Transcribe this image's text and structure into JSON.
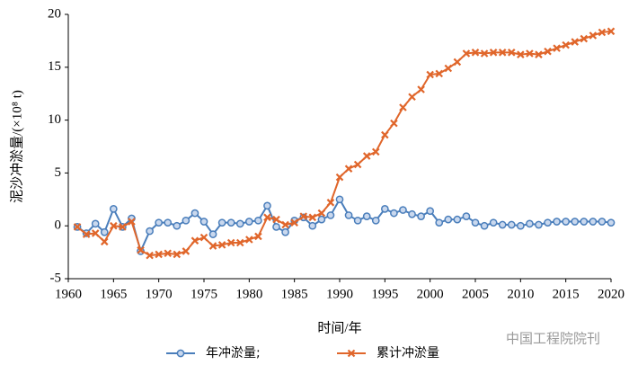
{
  "chart_data": {
    "type": "line",
    "x_label": "时间/年",
    "y_label": "泥沙冲淤量/(×10⁸ t)",
    "annotation": "中国工程院院刊",
    "x": [
      1961,
      1962,
      1963,
      1964,
      1965,
      1966,
      1967,
      1968,
      1969,
      1970,
      1971,
      1972,
      1973,
      1974,
      1975,
      1976,
      1977,
      1978,
      1979,
      1980,
      1981,
      1982,
      1983,
      1984,
      1985,
      1986,
      1987,
      1988,
      1989,
      1990,
      1991,
      1992,
      1993,
      1994,
      1995,
      1996,
      1997,
      1998,
      1999,
      2000,
      2001,
      2002,
      2003,
      2004,
      2005,
      2006,
      2007,
      2008,
      2009,
      2010,
      2011,
      2012,
      2013,
      2014,
      2015,
      2016,
      2017,
      2018,
      2019,
      2020
    ],
    "series": [
      {
        "name": "年冲淤量;",
        "color": "#4a7ebb",
        "marker": "circle",
        "values": [
          -0.1,
          -0.7,
          0.2,
          -0.6,
          1.6,
          -0.1,
          0.7,
          -2.4,
          -0.5,
          0.3,
          0.3,
          0.0,
          0.5,
          1.2,
          0.4,
          -0.8,
          0.3,
          0.3,
          0.2,
          0.4,
          0.5,
          1.9,
          -0.1,
          -0.6,
          0.5,
          0.8,
          0.0,
          0.6,
          1.0,
          2.5,
          1.0,
          0.5,
          0.9,
          0.5,
          1.6,
          1.2,
          1.5,
          1.1,
          0.9,
          1.4,
          0.3,
          0.6,
          0.6,
          0.9,
          0.3,
          0.0,
          0.3,
          0.1,
          0.1,
          0.0,
          0.2,
          0.1,
          0.3,
          0.4,
          0.4,
          0.4,
          0.4,
          0.4,
          0.4,
          0.3
        ]
      },
      {
        "name": "累计冲淤量",
        "color": "#e0662b",
        "marker": "x",
        "values": [
          -0.1,
          -0.8,
          -0.7,
          -1.5,
          0.0,
          -0.1,
          0.4,
          -2.3,
          -2.8,
          -2.7,
          -2.6,
          -2.7,
          -2.4,
          -1.4,
          -1.1,
          -1.9,
          -1.8,
          -1.6,
          -1.6,
          -1.3,
          -1.0,
          0.8,
          0.6,
          0.1,
          0.3,
          0.9,
          0.8,
          1.2,
          2.2,
          4.6,
          5.4,
          5.8,
          6.6,
          7.0,
          8.6,
          9.7,
          11.2,
          12.2,
          12.9,
          14.3,
          14.4,
          14.9,
          15.5,
          16.3,
          16.4,
          16.3,
          16.4,
          16.4,
          16.4,
          16.2,
          16.3,
          16.2,
          16.5,
          16.8,
          17.1,
          17.4,
          17.7,
          18.0,
          18.3,
          18.4
        ]
      }
    ],
    "xlim": [
      1960,
      2020
    ],
    "xticks": [
      1960,
      1965,
      1970,
      1975,
      1980,
      1985,
      1990,
      1995,
      2000,
      2005,
      2010,
      2015,
      2020
    ],
    "ylim": [
      -5,
      20
    ],
    "yticks": [
      -5,
      0,
      5,
      10,
      15,
      20
    ],
    "grid": false
  }
}
